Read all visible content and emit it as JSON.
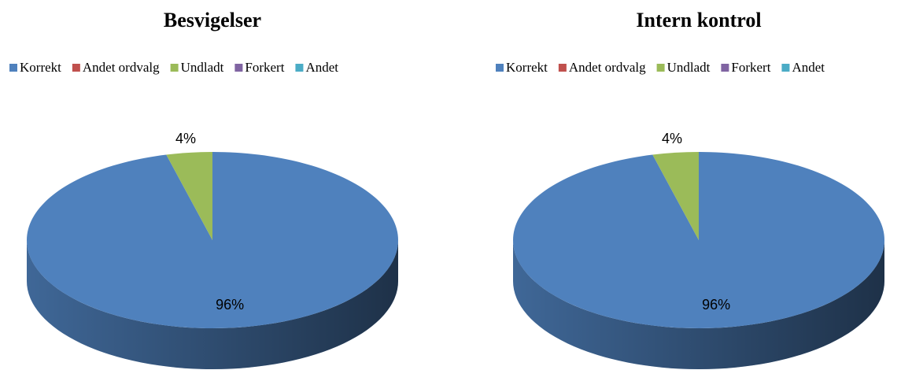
{
  "chart_data": [
    {
      "type": "pie",
      "title": "Besvigelser",
      "categories": [
        "Korrekt",
        "Andet ordvalg",
        "Undladt",
        "Forkert",
        "Andet"
      ],
      "values": [
        96,
        0,
        4,
        0,
        0
      ],
      "value_labels": [
        "96%",
        null,
        "4%",
        null,
        null
      ],
      "colors": [
        "#4f81bd",
        "#c0504d",
        "#9bbb59",
        "#8064a2",
        "#4bacc6"
      ],
      "legend": "top"
    },
    {
      "type": "pie",
      "title": "Intern kontrol",
      "categories": [
        "Korrekt",
        "Andet ordvalg",
        "Undladt",
        "Forkert",
        "Andet"
      ],
      "values": [
        96,
        0,
        4,
        0,
        0
      ],
      "value_labels": [
        "96%",
        null,
        "4%",
        null,
        null
      ],
      "colors": [
        "#4f81bd",
        "#c0504d",
        "#9bbb59",
        "#8064a2",
        "#4bacc6"
      ],
      "legend": "top"
    }
  ]
}
